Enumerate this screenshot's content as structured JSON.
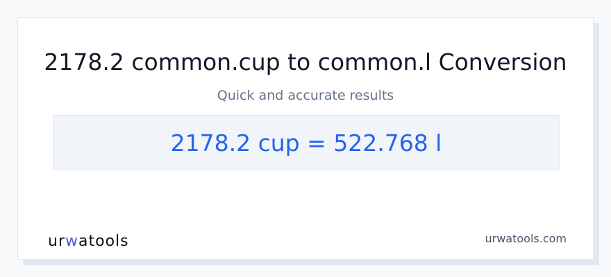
{
  "title": "2178.2 common.cup to common.l Conversion",
  "subtitle": "Quick and accurate results",
  "result": "2178.2 cup = 522.768 l",
  "logo": {
    "prefix": "ur",
    "accent": "w",
    "suffix": "atools",
    "accent_color": "#4f5bd5"
  },
  "site": "urwatools.com",
  "colors": {
    "result_text": "#2563eb",
    "result_bg": "#f1f5f9"
  }
}
